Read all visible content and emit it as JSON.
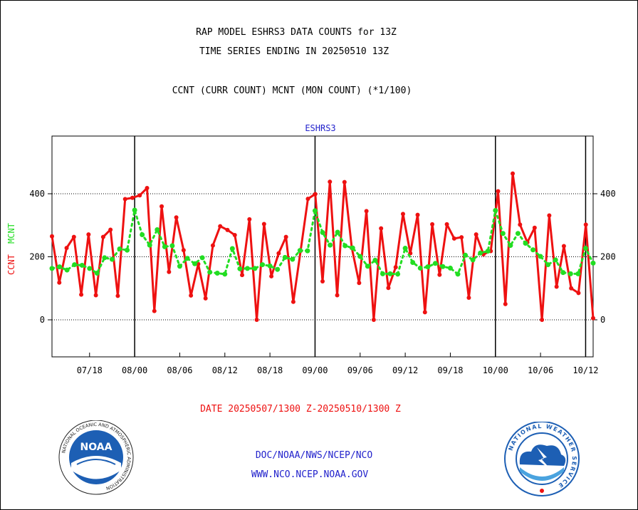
{
  "header": {
    "title_line1": "RAP MODEL ESHRS3 DATA COUNTS for 13Z",
    "title_line2": "TIME SERIES ENDING IN 20250510 13Z",
    "subtitle": "CCNT (CURR COUNT) MCNT (MON COUNT) (*1/100)"
  },
  "chart_data": {
    "type": "line",
    "title": "ESHRS3",
    "ylabel_left_ccnt": "CCNT",
    "ylabel_left_mcnt": "MCNT",
    "xlabel": "DATE 20250507/1300 Z-20250510/1300 Z",
    "ylim": [
      -120,
      580
    ],
    "yticks": [
      0,
      200,
      400
    ],
    "ytick_labels": [
      "0",
      "200",
      "400"
    ],
    "xtick_labels": [
      "07/18",
      "08/00",
      "08/06",
      "08/12",
      "08/18",
      "09/00",
      "09/06",
      "09/12",
      "09/18",
      "10/00",
      "10/06",
      "10/12"
    ],
    "xtick_hours": [
      5,
      11,
      17,
      23,
      29,
      35,
      41,
      47,
      53,
      59,
      65,
      71
    ],
    "x_start_hour": 0,
    "x_end_hour": 72,
    "day_boundaries_hours": [
      11,
      35,
      59,
      71
    ],
    "grid": "horizontal-dotted",
    "colors": {
      "ccnt": "#ee1111",
      "mcnt": "#22dd22",
      "title": "#2222cc",
      "xlabel": "#ee1111",
      "axis": "#000000"
    },
    "series": [
      {
        "name": "CCNT",
        "values": [
          265,
          118,
          228,
          263,
          80,
          271,
          78,
          263,
          286,
          76,
          383,
          387,
          395,
          418,
          28,
          360,
          152,
          325,
          221,
          77,
          177,
          68,
          236,
          297,
          285,
          269,
          142,
          319,
          0,
          304,
          138,
          211,
          263,
          57,
          219,
          384,
          399,
          122,
          438,
          78,
          437,
          228,
          117,
          345,
          0,
          290,
          101,
          167,
          336,
          211,
          333,
          24,
          303,
          143,
          303,
          258,
          262,
          70,
          271,
          208,
          218,
          408,
          50,
          464,
          302,
          246,
          292,
          0,
          331,
          105,
          234,
          100,
          85,
          302,
          5
        ]
      },
      {
        "name": "MCNT",
        "values": [
          163,
          168,
          158,
          175,
          173,
          163,
          148,
          197,
          192,
          225,
          221,
          348,
          270,
          237,
          286,
          232,
          235,
          170,
          195,
          178,
          197,
          151,
          148,
          145,
          226,
          162,
          163,
          163,
          175,
          171,
          160,
          198,
          192,
          220,
          219,
          346,
          277,
          237,
          278,
          235,
          228,
          201,
          170,
          189,
          146,
          146,
          145,
          227,
          182,
          164,
          168,
          179,
          169,
          164,
          145,
          205,
          190,
          212,
          218,
          347,
          274,
          236,
          274,
          243,
          222,
          201,
          175,
          190,
          150,
          146,
          146,
          227,
          180
        ]
      }
    ]
  },
  "footer": {
    "links_line1": "DOC/NOAA/NWS/NCEP/NCO",
    "links_line2": "WWW.NCO.NCEP.NOAA.GOV",
    "noaa_logo_text": "NOAA",
    "noaa_ring_text": "NATIONAL OCEANIC AND ATMOSPHERIC ADMINISTRATION",
    "noaa_ring_bottom": "U.S. DEPARTMENT OF COMMERCE",
    "nws_ring_text": "NATIONAL WEATHER SERVICE"
  }
}
